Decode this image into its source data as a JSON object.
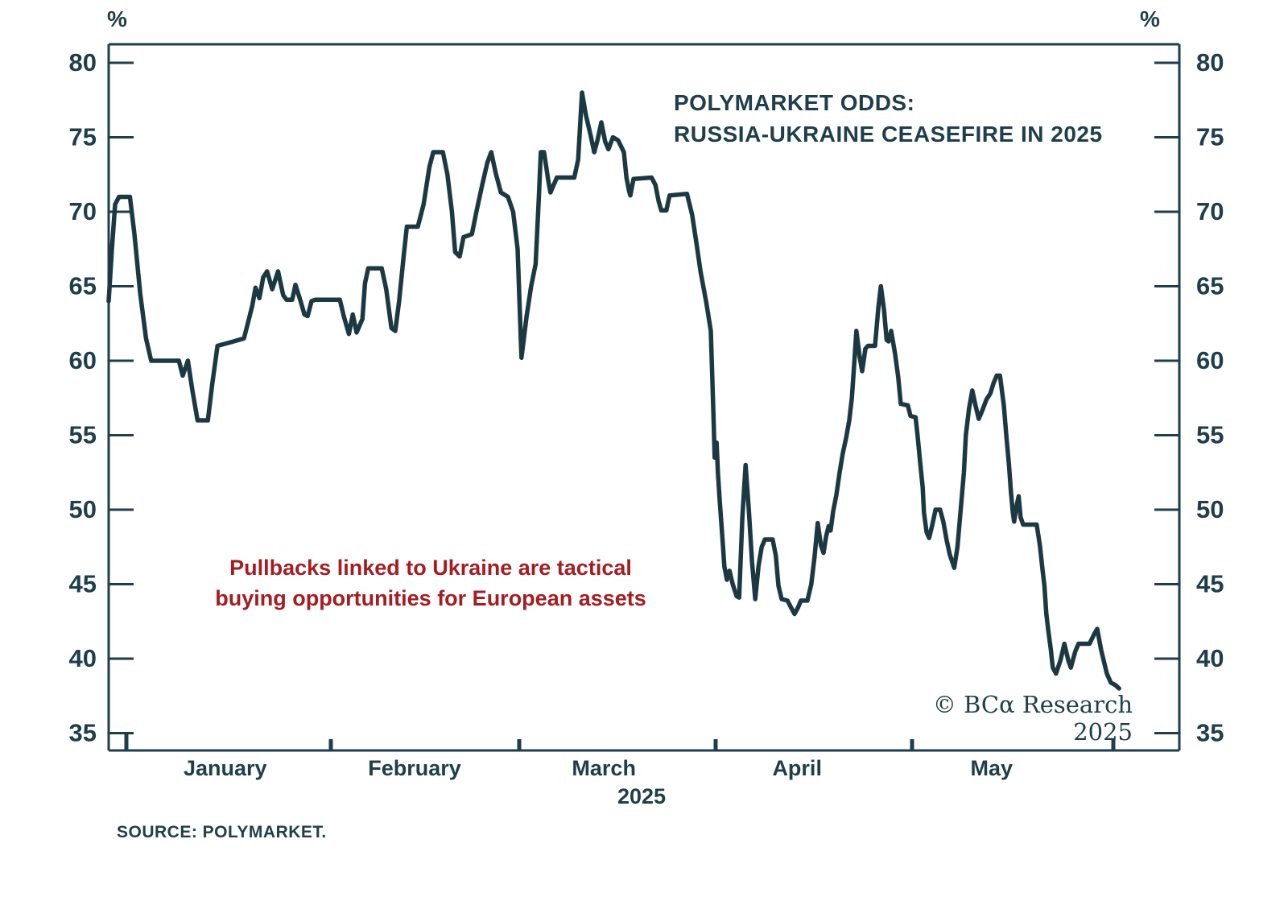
{
  "colors": {
    "ink": "#1e3e4b",
    "line": "#1c3943",
    "red": "#a31d22",
    "background": "#ffffff"
  },
  "header": {
    "title_line1": "POLYMARKET ODDS:",
    "title_line2": "RUSSIA-UKRAINE CEASEFIRE IN 2025"
  },
  "annotation": {
    "line1": "Pullbacks linked to Ukraine are tactical",
    "line2": "buying opportunities for European assets"
  },
  "credit": "© BCα Research 2025",
  "source": "SOURCE: POLYMARKET.",
  "axis_unit_left": "%",
  "axis_unit_right": "%",
  "chart_data": {
    "type": "line",
    "title": "Polymarket odds: Russia-Ukraine ceasefire in 2025",
    "ylabel": "%",
    "ylim": [
      35,
      80
    ],
    "y_ticks": [
      80,
      75,
      70,
      65,
      60,
      55,
      50,
      45,
      40,
      35
    ],
    "grid": false,
    "x_months": [
      "January",
      "February",
      "March",
      "April",
      "May"
    ],
    "x_year": "2025",
    "x_start_date": "2024-12-27",
    "x_end_date": "2025-06-01",
    "month_boundary_days": [
      2.75,
      34.5,
      63.75,
      94.25,
      124.75,
      156
    ],
    "month_label_days": [
      18.1,
      47.5,
      76.9,
      106.9,
      137.1
    ],
    "year_label_day": 82.75,
    "series": [
      {
        "name": "Ceasefire odds (% probability)",
        "points": [
          [
            0,
            64
          ],
          [
            0.5,
            67.5
          ],
          [
            1,
            70.5
          ],
          [
            1.6,
            71
          ],
          [
            3.3,
            71
          ],
          [
            4,
            68.5
          ],
          [
            4.9,
            64.5
          ],
          [
            5.8,
            61.5
          ],
          [
            6.6,
            60
          ],
          [
            10.9,
            60
          ],
          [
            11.5,
            59
          ],
          [
            12.3,
            60
          ],
          [
            13,
            58
          ],
          [
            13.8,
            56
          ],
          [
            15.4,
            56
          ],
          [
            16.1,
            58.5
          ],
          [
            16.9,
            61
          ],
          [
            19.4,
            61.3
          ],
          [
            21,
            61.5
          ],
          [
            21.6,
            62.5
          ],
          [
            22.3,
            63.7
          ],
          [
            22.8,
            64.9
          ],
          [
            23.4,
            64.2
          ],
          [
            24,
            65.6
          ],
          [
            24.6,
            66
          ],
          [
            25.4,
            64.8
          ],
          [
            26.3,
            66
          ],
          [
            27.1,
            64.4
          ],
          [
            27.6,
            64.1
          ],
          [
            28.5,
            64.1
          ],
          [
            29,
            65.1
          ],
          [
            29.8,
            64
          ],
          [
            30.4,
            63.1
          ],
          [
            30.9,
            63
          ],
          [
            31.5,
            64
          ],
          [
            32.1,
            64.1
          ],
          [
            35.9,
            64.1
          ],
          [
            36.5,
            63
          ],
          [
            37.3,
            61.8
          ],
          [
            37.9,
            63.1
          ],
          [
            38.5,
            61.9
          ],
          [
            39.4,
            62.8
          ],
          [
            39.8,
            65.2
          ],
          [
            40.3,
            66.2
          ],
          [
            42.4,
            66.2
          ],
          [
            43.1,
            64.8
          ],
          [
            43.9,
            62.2
          ],
          [
            44.5,
            62
          ],
          [
            45.1,
            64
          ],
          [
            45.8,
            67
          ],
          [
            46.3,
            69
          ],
          [
            48,
            69
          ],
          [
            48.9,
            70.5
          ],
          [
            49.8,
            73
          ],
          [
            50.4,
            74
          ],
          [
            51.9,
            74
          ],
          [
            52.6,
            72.5
          ],
          [
            53.3,
            70
          ],
          [
            53.8,
            67.3
          ],
          [
            54.5,
            67
          ],
          [
            55.1,
            68.3
          ],
          [
            56.4,
            68.5
          ],
          [
            57.1,
            70
          ],
          [
            58,
            71.8
          ],
          [
            58.8,
            73.3
          ],
          [
            59.4,
            74
          ],
          [
            60.1,
            72.6
          ],
          [
            60.9,
            71.3
          ],
          [
            62,
            71
          ],
          [
            62.8,
            70
          ],
          [
            63.5,
            67.5
          ],
          [
            64.1,
            60.2
          ],
          [
            64.9,
            63
          ],
          [
            65.6,
            65
          ],
          [
            66.3,
            66.5
          ],
          [
            66.8,
            71
          ],
          [
            67.1,
            74
          ],
          [
            67.6,
            74
          ],
          [
            68.3,
            72
          ],
          [
            68.6,
            71.3
          ],
          [
            69.1,
            71.8
          ],
          [
            69.6,
            72.3
          ],
          [
            72.3,
            72.3
          ],
          [
            72.9,
            73.5
          ],
          [
            73.5,
            78
          ],
          [
            74.1,
            76.5
          ],
          [
            74.8,
            75.2
          ],
          [
            75.4,
            74
          ],
          [
            75.9,
            74.8
          ],
          [
            76.5,
            76
          ],
          [
            77.1,
            74.7
          ],
          [
            77.6,
            74.2
          ],
          [
            78.3,
            75
          ],
          [
            79.1,
            74.8
          ],
          [
            80,
            74
          ],
          [
            80.4,
            72.3
          ],
          [
            80.8,
            71.4
          ],
          [
            81,
            71.1
          ],
          [
            81.5,
            72.2
          ],
          [
            84.3,
            72.3
          ],
          [
            84.9,
            71.8
          ],
          [
            85.4,
            70.7
          ],
          [
            85.8,
            70.1
          ],
          [
            86.6,
            70.1
          ],
          [
            87.1,
            71.1
          ],
          [
            89.8,
            71.2
          ],
          [
            90.6,
            69.8
          ],
          [
            91.3,
            67.8
          ],
          [
            91.9,
            66
          ],
          [
            92.8,
            63.9
          ],
          [
            93.5,
            62
          ],
          [
            93.9,
            56.5
          ],
          [
            94.1,
            53.5
          ],
          [
            94.4,
            54.5
          ],
          [
            94.6,
            52.5
          ],
          [
            94.9,
            50.5
          ],
          [
            95.1,
            49.3
          ],
          [
            95.4,
            47.5
          ],
          [
            95.6,
            46.2
          ],
          [
            96,
            45.3
          ],
          [
            96.4,
            45.9
          ],
          [
            96.9,
            45
          ],
          [
            97.5,
            44.2
          ],
          [
            97.9,
            44.1
          ],
          [
            98.4,
            49.5
          ],
          [
            98.9,
            53
          ],
          [
            99.4,
            50
          ],
          [
            99.9,
            46.5
          ],
          [
            100.4,
            44
          ],
          [
            100.9,
            46.2
          ],
          [
            101.4,
            47.5
          ],
          [
            101.9,
            48
          ],
          [
            103.1,
            48
          ],
          [
            103.6,
            46.9
          ],
          [
            104,
            44.9
          ],
          [
            104.5,
            44
          ],
          [
            105.4,
            43.9
          ],
          [
            106,
            43.4
          ],
          [
            106.5,
            43
          ],
          [
            107,
            43.4
          ],
          [
            107.5,
            43.9
          ],
          [
            108.5,
            43.9
          ],
          [
            109.1,
            45
          ],
          [
            109.6,
            46.8
          ],
          [
            110.1,
            49.1
          ],
          [
            110.6,
            47.6
          ],
          [
            111,
            47.1
          ],
          [
            111.4,
            48.2
          ],
          [
            111.8,
            48.9
          ],
          [
            112.1,
            48.6
          ],
          [
            112.5,
            49.9
          ],
          [
            113,
            51
          ],
          [
            113.5,
            52.5
          ],
          [
            114,
            53.8
          ],
          [
            114.5,
            54.8
          ],
          [
            115,
            56
          ],
          [
            115.4,
            57.5
          ],
          [
            115.8,
            60
          ],
          [
            116.1,
            62
          ],
          [
            116.6,
            60.3
          ],
          [
            117,
            59.3
          ],
          [
            117.5,
            60.8
          ],
          [
            117.9,
            61
          ],
          [
            119,
            61
          ],
          [
            119.5,
            63.5
          ],
          [
            119.9,
            65
          ],
          [
            120.4,
            63.4
          ],
          [
            120.8,
            61.4
          ],
          [
            121.1,
            61.3
          ],
          [
            121.5,
            62
          ],
          [
            122.1,
            60.5
          ],
          [
            122.6,
            58.9
          ],
          [
            123,
            57.1
          ],
          [
            124.1,
            57
          ],
          [
            124.5,
            56.3
          ],
          [
            125.3,
            56.2
          ],
          [
            125.6,
            55
          ],
          [
            126,
            53.2
          ],
          [
            126.4,
            51.5
          ],
          [
            126.6,
            49.8
          ],
          [
            127,
            48.5
          ],
          [
            127.4,
            48.1
          ],
          [
            127.9,
            49
          ],
          [
            128.4,
            50
          ],
          [
            129.1,
            50
          ],
          [
            129.6,
            49.2
          ],
          [
            130.1,
            48
          ],
          [
            130.6,
            47
          ],
          [
            131.3,
            46.1
          ],
          [
            131.8,
            47.5
          ],
          [
            132.3,
            50
          ],
          [
            132.8,
            52.5
          ],
          [
            133.1,
            55
          ],
          [
            133.6,
            56.8
          ],
          [
            134.1,
            58
          ],
          [
            134.6,
            57
          ],
          [
            135.1,
            56.1
          ],
          [
            135.6,
            56.6
          ],
          [
            136.3,
            57.4
          ],
          [
            136.9,
            57.8
          ],
          [
            137.4,
            58.5
          ],
          [
            137.9,
            59
          ],
          [
            138.4,
            59
          ],
          [
            139,
            57
          ],
          [
            139.4,
            54.9
          ],
          [
            139.8,
            53
          ],
          [
            140.1,
            51.2
          ],
          [
            140.4,
            49.8
          ],
          [
            140.6,
            49.2
          ],
          [
            141,
            50.3
          ],
          [
            141.3,
            50.9
          ],
          [
            141.6,
            49.5
          ],
          [
            142,
            49
          ],
          [
            144.1,
            49
          ],
          [
            144.6,
            47.6
          ],
          [
            145,
            46
          ],
          [
            145.3,
            44.9
          ],
          [
            145.6,
            43
          ],
          [
            145.9,
            41.9
          ],
          [
            146.3,
            40.6
          ],
          [
            146.6,
            39.4
          ],
          [
            147.1,
            39
          ],
          [
            147.8,
            39.9
          ],
          [
            148.4,
            41
          ],
          [
            149,
            39.9
          ],
          [
            149.4,
            39.4
          ],
          [
            150.1,
            40.5
          ],
          [
            150.6,
            41
          ],
          [
            152.3,
            41
          ],
          [
            153.1,
            41.7
          ],
          [
            153.5,
            42
          ],
          [
            154.1,
            40.6
          ],
          [
            154.6,
            39.7
          ],
          [
            155,
            39
          ],
          [
            155.6,
            38.4
          ],
          [
            156.4,
            38.2
          ],
          [
            156.9,
            38
          ]
        ]
      }
    ]
  }
}
